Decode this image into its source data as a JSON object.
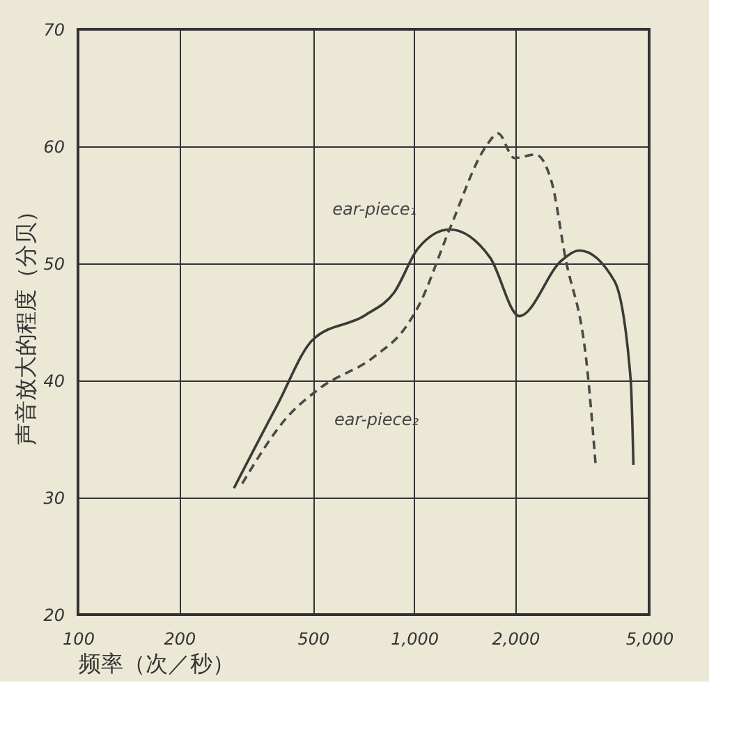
{
  "chart_data": {
    "type": "line",
    "xlabel": "频率（次／秒）",
    "ylabel": "声音放大的程度（分贝）",
    "xlim": [
      100,
      5000
    ],
    "xticks": [
      100,
      200,
      500,
      {
        "value": 1000,
        "label": "1,000"
      },
      {
        "value": 2000,
        "label": "2,000"
      },
      {
        "value": 5000,
        "label": "5,000"
      }
    ],
    "ylim": [
      20,
      70
    ],
    "yticks": [
      20,
      30,
      40,
      50,
      60,
      70
    ],
    "grid": true,
    "legend": false,
    "log": "x",
    "series": [
      {
        "name": "ear-piece₁",
        "color": "#3a3a36",
        "line_style": "solid",
        "x": [
          291,
          390,
          500,
          717,
          871,
          1028,
          1274,
          1682,
          2055,
          2757,
          3101,
          3941,
          4408,
          4490
        ],
        "values": [
          30.8,
          37.8,
          43.5,
          45.6,
          47.5,
          51.3,
          52.9,
          50.5,
          45.5,
          50.3,
          51.1,
          48.5,
          40,
          32.8
        ]
      },
      {
        "name": "ear-piece₂",
        "color": "#4a4a46",
        "line_style": "dashed",
        "x": [
          308,
          420,
          528,
          758,
          946,
          1028,
          1274,
          1636,
          1778,
          1986,
          2295,
          2562,
          2808,
          3283,
          3468
        ],
        "values": [
          31.2,
          36.9,
          39.4,
          42,
          44.6,
          46.3,
          52.9,
          60,
          61.1,
          59,
          59.3,
          57,
          50.7,
          40.6,
          32.7
        ]
      }
    ]
  }
}
